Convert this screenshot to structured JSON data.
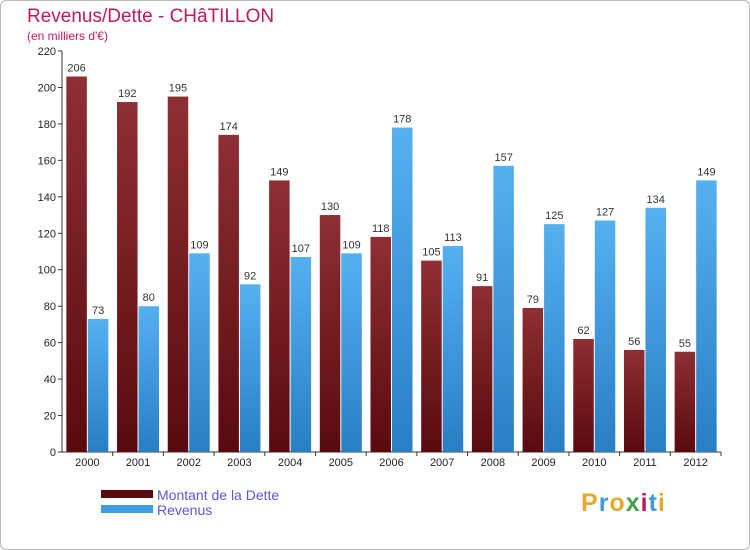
{
  "title": "Revenus/Dette - CHâTILLON",
  "subtitle": "(en milliers d'€)",
  "legend": [
    {
      "label": "Montant de la Dette",
      "color": "#7a1e22"
    },
    {
      "label": "Revenus",
      "color": "#3f9be0"
    }
  ],
  "logo": {
    "text": "Proxiti",
    "letters": [
      "P",
      "r",
      "o",
      "x",
      "i",
      "t",
      "i"
    ],
    "colors": [
      "#e8a92a",
      "#3f9be0",
      "#e8a92a",
      "#3fa34a",
      "#c2185b",
      "#3f9be0",
      "#e8a92a"
    ]
  },
  "chart_data": {
    "type": "bar",
    "categories": [
      "2000",
      "2001",
      "2002",
      "2003",
      "2004",
      "2005",
      "2006",
      "2007",
      "2008",
      "2009",
      "2010",
      "2011",
      "2012"
    ],
    "series": [
      {
        "name": "Montant de la Dette",
        "color": "#7a1e22",
        "values": [
          206,
          192,
          195,
          174,
          149,
          130,
          118,
          105,
          91,
          79,
          62,
          56,
          55
        ]
      },
      {
        "name": "Revenus",
        "color": "#3f9be0",
        "values": [
          73,
          80,
          109,
          92,
          107,
          109,
          178,
          113,
          157,
          125,
          127,
          134,
          149
        ]
      }
    ],
    "ylim": [
      0,
      220
    ],
    "yticks": [
      0,
      20,
      40,
      60,
      80,
      100,
      120,
      140,
      160,
      180,
      200,
      220
    ],
    "grid": false
  }
}
